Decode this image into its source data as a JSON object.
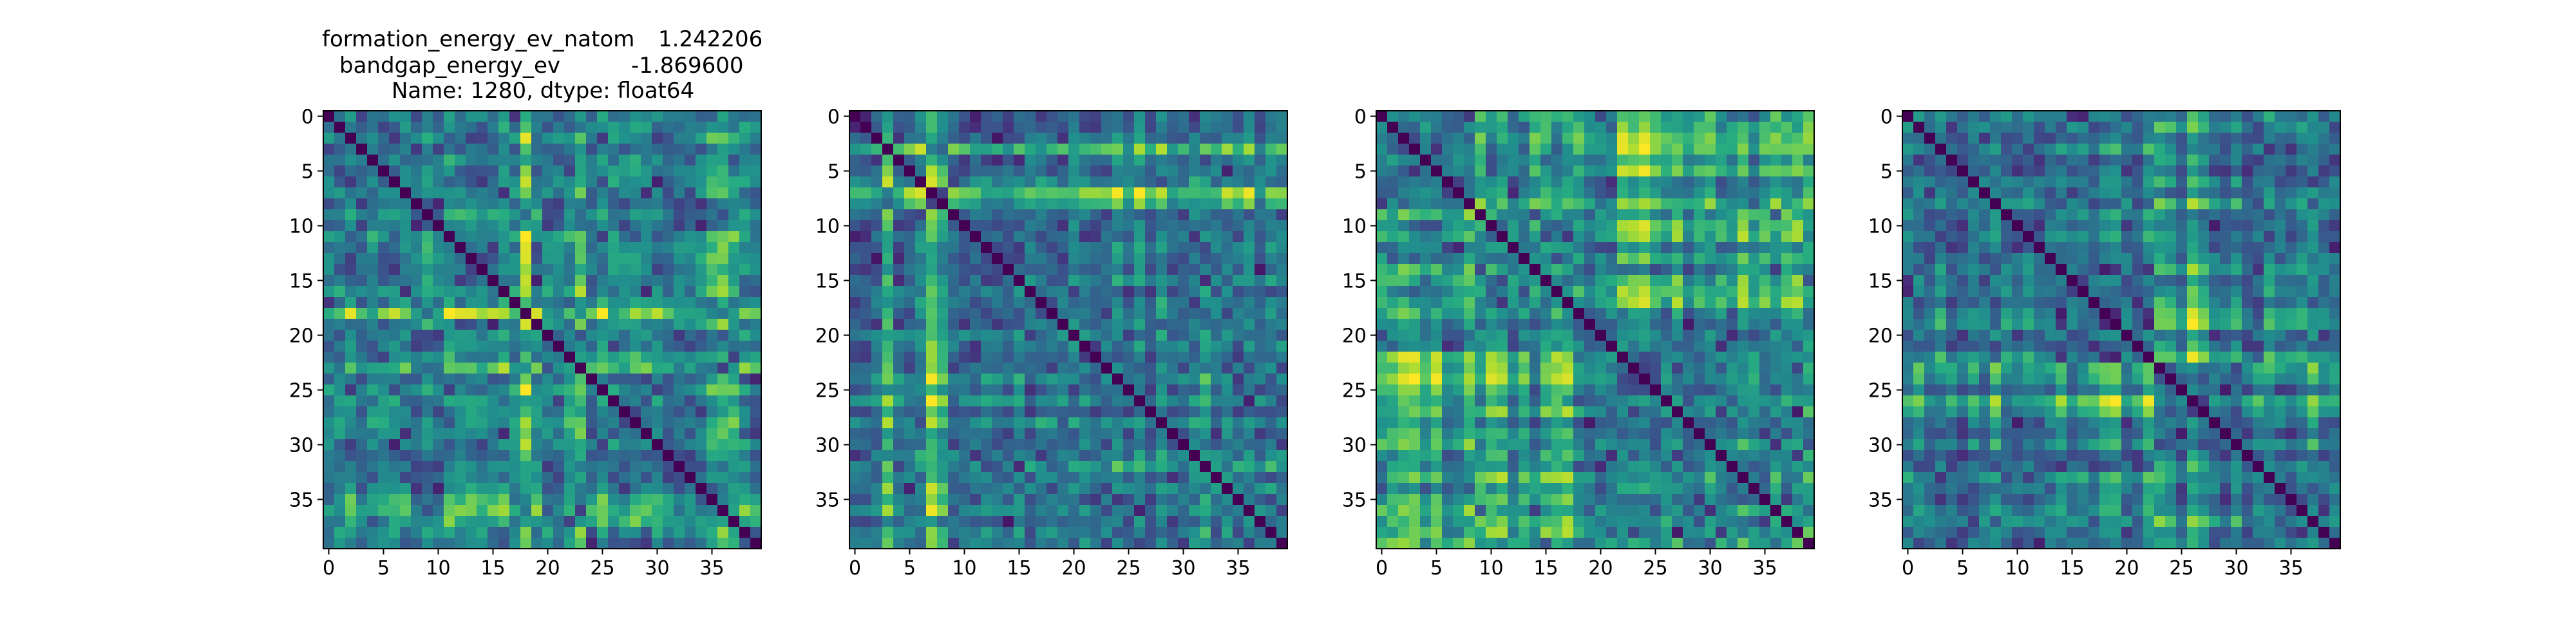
{
  "title_block": {
    "line1_label": "formation_energy_ev_natom",
    "line1_value": "1.242206",
    "line2_label": "bandgap_energy_ev",
    "line2_value": "-1.869600",
    "line3": "Name: 1280, dtype: float64"
  },
  "chart_data": [
    {
      "type": "heatmap",
      "title": "formation_energy_ev_natom    1.242206\nbandgap_energy_ev          -1.869600\nName: 1280, dtype: float64",
      "xlabel": "",
      "ylabel": "",
      "xlim": [
        -0.5,
        39.5
      ],
      "ylim": [
        39.5,
        -0.5
      ],
      "x_ticks": [
        0,
        5,
        10,
        15,
        20,
        25,
        30,
        35
      ],
      "y_ticks": [
        0,
        5,
        10,
        15,
        20,
        25,
        30,
        35
      ],
      "matrix_size": 40,
      "colormap": "viridis",
      "diagonal_value": 0.0,
      "grid": false,
      "description": "Distance matrix; dark diagonal, bright bands near rows 18, 23, 34-37 and cols 9, 18, 34-38"
    },
    {
      "type": "heatmap",
      "title": "",
      "xlabel": "",
      "ylabel": "",
      "xlim": [
        -0.5,
        39.5
      ],
      "ylim": [
        39.5,
        -0.5
      ],
      "x_ticks": [
        0,
        5,
        10,
        15,
        20,
        25,
        30,
        35
      ],
      "y_ticks": [
        0,
        5,
        10,
        15,
        20,
        25,
        30,
        35
      ],
      "matrix_size": 40,
      "colormap": "viridis",
      "diagonal_value": 0.0,
      "grid": false,
      "description": "Distance matrix; bright thin stripes at rows/cols 3, 7, 8"
    },
    {
      "type": "heatmap",
      "title": "",
      "xlabel": "",
      "ylabel": "",
      "xlim": [
        -0.5,
        39.5
      ],
      "ylim": [
        39.5,
        -0.5
      ],
      "x_ticks": [
        0,
        5,
        10,
        15,
        20,
        25,
        30,
        35
      ],
      "y_ticks": [
        0,
        5,
        10,
        15,
        20,
        25,
        30,
        35
      ],
      "matrix_size": 40,
      "colormap": "viridis",
      "diagonal_value": 0.0,
      "grid": false,
      "description": "Distance matrix; block structure with bright regions rows 22-38 x cols 0-22"
    },
    {
      "type": "heatmap",
      "title": "",
      "xlabel": "",
      "ylabel": "",
      "xlim": [
        -0.5,
        39.5
      ],
      "ylim": [
        39.5,
        -0.5
      ],
      "x_ticks": [
        0,
        5,
        10,
        15,
        20,
        25,
        30,
        35
      ],
      "y_ticks": [
        0,
        5,
        10,
        15,
        20,
        25,
        30,
        35
      ],
      "matrix_size": 40,
      "colormap": "viridis",
      "diagonal_value": 0.0,
      "grid": false,
      "description": "Distance matrix; block structure with bright region rows 23-30 x cols 0-16"
    }
  ]
}
